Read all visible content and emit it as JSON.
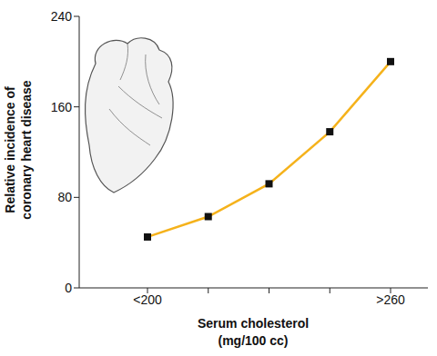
{
  "chart_data": {
    "type": "line",
    "x_label": "Serum cholesterol (mg/100 cc)",
    "y_label": "Relative incidence of coronary heart disease",
    "categories": [
      "<200",
      null,
      null,
      null,
      ">260"
    ],
    "series": [
      {
        "name": "Relative incidence",
        "color": "#f5b21b",
        "marker": "square",
        "values": [
          45,
          63,
          92,
          138,
          200
        ]
      }
    ],
    "ylim": [
      0,
      240
    ],
    "yticks": [
      0,
      80,
      160,
      240
    ],
    "grid": false
  }
}
